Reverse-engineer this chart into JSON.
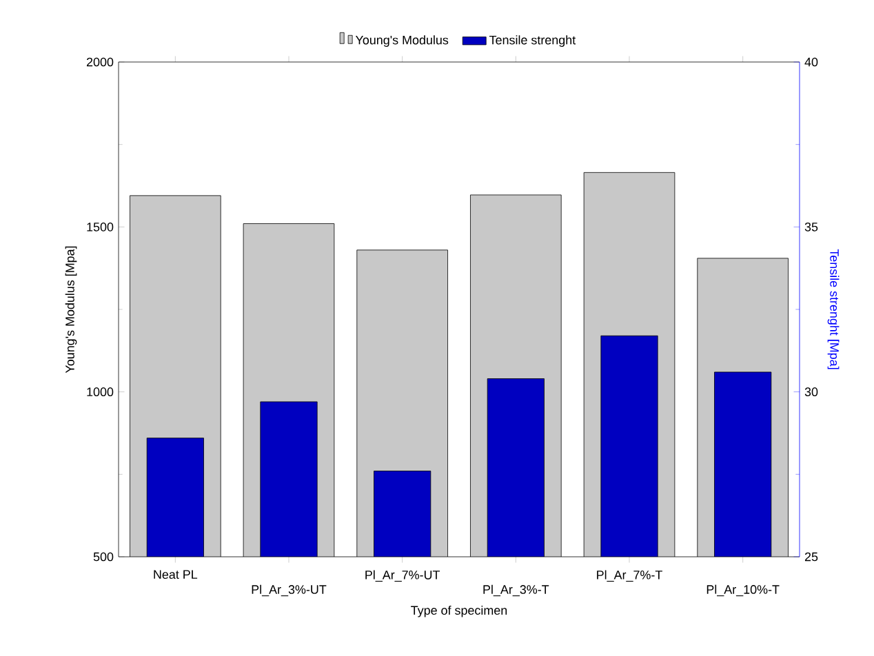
{
  "chart_data": {
    "type": "bar",
    "xlabel": "Type of specimen",
    "ylabel": "Young's Modulus [Mpa]",
    "y2label": "Tensile strenght [Mpa]",
    "categories": [
      "Neat PL",
      "Pl_Ar_3%-UT",
      "Pl_Ar_7%-UT",
      "Pl_Ar_3%-T",
      "Pl_Ar_7%-T",
      "Pl_Ar_10%-T"
    ],
    "series": [
      {
        "name": "Young's Modulus",
        "color": "#c8c8c8",
        "values": [
          1595,
          1510,
          1430,
          1597,
          1665,
          1405
        ]
      },
      {
        "name": "Tensile strenght",
        "color": "#0000c0",
        "axis": "y2",
        "values": [
          28.6,
          29.7,
          27.6,
          30.4,
          31.7,
          30.6
        ]
      }
    ],
    "ylim": [
      500,
      2000
    ],
    "yticks": [
      500,
      1000,
      1500,
      2000
    ],
    "y2lim": [
      25,
      40
    ],
    "y2ticks": [
      25,
      30,
      35,
      40
    ],
    "legend": "top"
  }
}
